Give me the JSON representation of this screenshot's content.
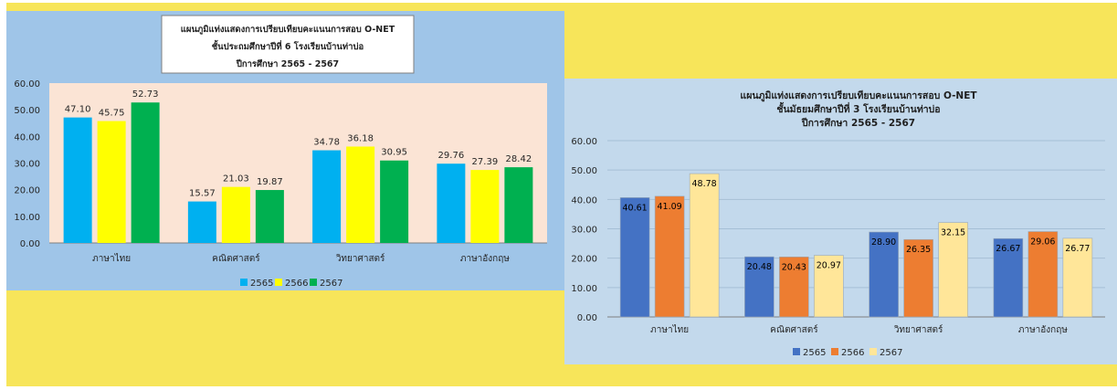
{
  "charts": [
    {
      "title_lines": [
        "แผนภูมิแท่งแสดงการเปรียบเทียบคะแนนการสอบ O-NET",
        "ชั้นประถมศึกษาปีที่ 6  โรงเรียนบ้านท่าบ่อ",
        "ปีการศึกษา 2565 - 2567"
      ]
    },
    {
      "title_lines": [
        "แผนภูมิแท่งแสดงการเปรียบเทียบคะแนนการสอบ O-NET",
        "ชั้นมัธยมศึกษาปีที่ 3  โรงเรียนบ้านท่าบ่อ",
        "ปีการศึกษา 2565 - 2567"
      ]
    }
  ],
  "chart_data": [
    {
      "type": "bar",
      "title": "แผนภูมิแท่งแสดงการเปรียบเทียบคะแนนการสอบ O-NET ชั้นประถมศึกษาปีที่ 6  โรงเรียนบ้านท่าบ่อ ปีการศึกษา 2565 - 2567",
      "categories": [
        "ภาษาไทย",
        "คณิตศาสตร์",
        "วิทยาศาสตร์",
        "ภาษาอังกฤษ"
      ],
      "series": [
        {
          "name": "2565",
          "values": [
            47.1,
            15.57,
            34.78,
            29.76
          ],
          "color": "#00b0f0"
        },
        {
          "name": "2566",
          "values": [
            45.75,
            21.03,
            36.18,
            27.39
          ],
          "color": "#ffff00"
        },
        {
          "name": "2567",
          "values": [
            52.73,
            19.87,
            30.95,
            28.42
          ],
          "color": "#00b050"
        }
      ],
      "ylim": [
        0,
        60
      ],
      "yticks": [
        "0.00",
        "10.00",
        "20.00",
        "30.00",
        "40.00",
        "50.00",
        "60.00"
      ],
      "value_labels": [
        [
          "47.10",
          "15.57",
          "34.78",
          "29.76"
        ],
        [
          "45.75",
          "21.03",
          "36.18",
          "27.39"
        ],
        [
          "52.73",
          "19.87",
          "30.95",
          "28.42"
        ]
      ],
      "plot_background": "#fbe4d5",
      "grid": false,
      "legend": "bottom"
    },
    {
      "type": "bar",
      "title": "แผนภูมิแท่งแสดงการเปรียบเทียบคะแนนการสอบ O-NET ชั้นมัธยมศึกษาปีที่ 3  โรงเรียนบ้านท่าบ่อ ปีการศึกษา 2565 - 2567",
      "categories": [
        "ภาษาไทย",
        "คณิตศาสตร์",
        "วิทยาศาสตร์",
        "ภาษาอังกฤษ"
      ],
      "series": [
        {
          "name": "2565",
          "values": [
            40.61,
            20.48,
            28.9,
            26.67
          ],
          "color": "#4472c4"
        },
        {
          "name": "2566",
          "values": [
            41.09,
            20.43,
            26.35,
            29.06
          ],
          "color": "#ed7d31"
        },
        {
          "name": "2567",
          "values": [
            48.78,
            20.97,
            32.15,
            26.77
          ],
          "color": "#ffe699"
        }
      ],
      "ylim": [
        0,
        60
      ],
      "yticks": [
        "0.00",
        "10.00",
        "20.00",
        "30.00",
        "40.00",
        "50.00",
        "60.00"
      ],
      "value_labels": [
        [
          "40.61",
          "20.48",
          "28.90",
          "26.67"
        ],
        [
          "41.09",
          "20.43",
          "26.35",
          "29.06"
        ],
        [
          "48.78",
          "20.97",
          "32.15",
          "26.77"
        ]
      ],
      "plot_background": "#c3d9ec",
      "grid": true,
      "legend": "bottom"
    }
  ]
}
